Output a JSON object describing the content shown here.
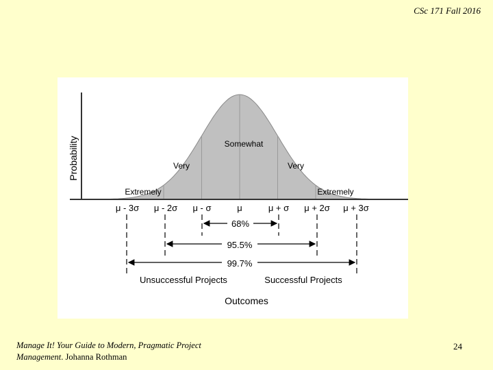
{
  "slide": {
    "header": "CSc 171 Fall 2016",
    "citation_title": "Manage It! Your Guide to Modern, Pragmatic Project Management",
    "citation_sep": ".",
    "citation_author": " Johanna Rothman",
    "page_number": "24"
  },
  "figure": {
    "y_axis_label": "Probability",
    "region_labels": {
      "somewhat": "Somewhat",
      "very_left": "Very",
      "very_right": "Very",
      "extremely_left": "Extremely",
      "extremely_right": "Extremely"
    },
    "ticks": [
      "μ - 3σ",
      "μ - 2σ",
      "μ - σ",
      "μ",
      "μ + σ",
      "μ + 2σ",
      "μ + 3σ"
    ],
    "ranges": {
      "one_sigma": "68%",
      "two_sigma": "95.5%",
      "three_sigma": "99.7%"
    },
    "outcome_left": "Unsuccessful Projects",
    "outcome_right": "Successful Projects",
    "x_axis_label": "Outcomes",
    "colors": {
      "fill": "#c0c0c0",
      "axis": "#333333",
      "background": "#ffffff"
    }
  },
  "chart_data": {
    "type": "area",
    "distribution": "normal",
    "x": [
      -3,
      -2,
      -1,
      0,
      1,
      2,
      3
    ],
    "x_tick_labels": [
      "μ - 3σ",
      "μ - 2σ",
      "μ - σ",
      "μ",
      "μ + σ",
      "μ + 2σ",
      "μ + 3σ"
    ],
    "ylabel": "Probability",
    "xlabel": "Outcomes",
    "intervals": [
      {
        "from": -1,
        "to": 1,
        "label": "68%"
      },
      {
        "from": -2,
        "to": 2,
        "label": "95.5%"
      },
      {
        "from": -3,
        "to": 3,
        "label": "99.7%"
      }
    ],
    "grid": false,
    "legend": "none"
  }
}
